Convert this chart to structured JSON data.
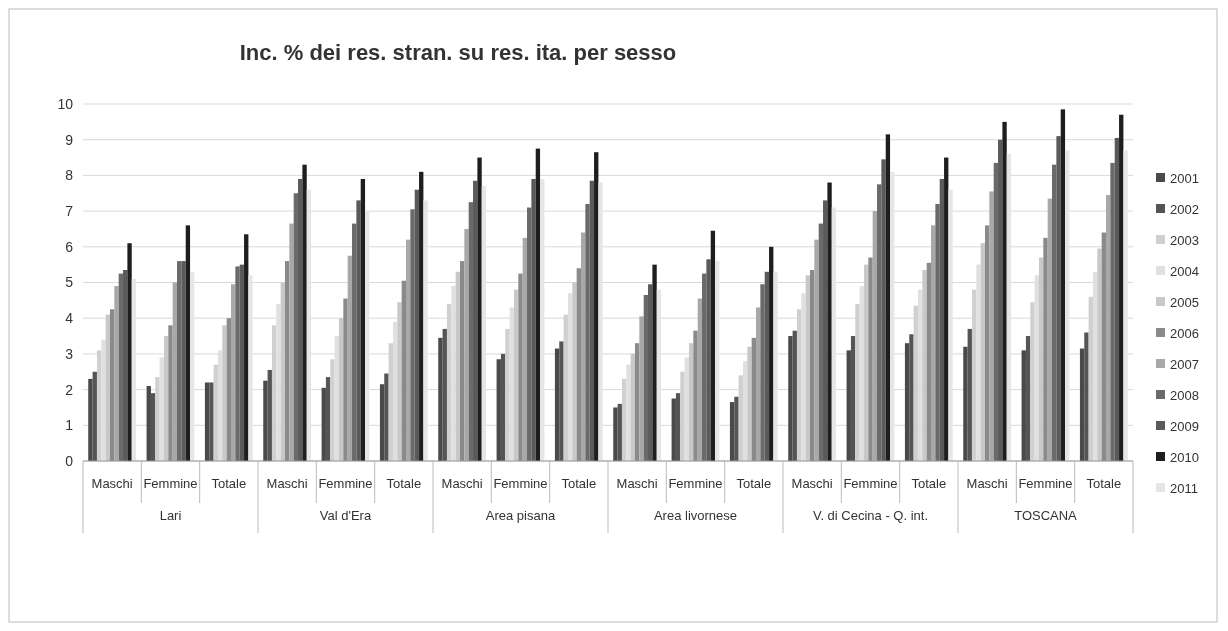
{
  "chart_data": {
    "type": "bar",
    "title": "Inc. % dei res. stran. su res. ita. per sesso",
    "categories": [
      "Maschi",
      "Femmine",
      "Totale",
      "Maschi",
      "Femmine",
      "Totale",
      "Maschi",
      "Femmine",
      "Totale",
      "Maschi",
      "Femmine",
      "Totale",
      "Maschi",
      "Femmine",
      "Totale",
      "Maschi",
      "Femmine",
      "Totale"
    ],
    "annotations": [
      "Lari",
      "Val d'Era",
      "Area pisana",
      "Area livornese",
      "V. di Cecina - Q. int.",
      "TOSCANA"
    ],
    "series": [
      {
        "name": "2001",
        "color": "#4a4a4a",
        "values": [
          2.3,
          2.1,
          2.2,
          2.25,
          2.05,
          2.15,
          3.45,
          2.85,
          3.15,
          1.5,
          1.75,
          1.65,
          3.5,
          3.1,
          3.3,
          3.2,
          3.1,
          3.15
        ]
      },
      {
        "name": "2002",
        "color": "#555555",
        "values": [
          2.5,
          1.9,
          2.2,
          2.55,
          2.35,
          2.45,
          3.7,
          3.0,
          3.35,
          1.6,
          1.9,
          1.8,
          3.65,
          3.5,
          3.55,
          3.7,
          3.5,
          3.6
        ]
      },
      {
        "name": "2003",
        "color": "#d0d0d0",
        "values": [
          3.1,
          2.35,
          2.7,
          3.8,
          2.85,
          3.3,
          4.4,
          3.7,
          4.1,
          2.3,
          2.5,
          2.4,
          4.25,
          4.4,
          4.35,
          4.8,
          4.45,
          4.6
        ]
      },
      {
        "name": "2004",
        "color": "#e0e0e0",
        "values": [
          3.4,
          2.9,
          3.1,
          4.4,
          3.5,
          3.9,
          4.9,
          4.3,
          4.7,
          2.7,
          2.9,
          2.8,
          4.7,
          4.9,
          4.8,
          5.5,
          5.2,
          5.3
        ]
      },
      {
        "name": "2005",
        "color": "#c8c8c8",
        "values": [
          4.1,
          3.5,
          3.8,
          5.0,
          4.0,
          4.45,
          5.3,
          4.8,
          5.0,
          3.0,
          3.3,
          3.2,
          5.2,
          5.5,
          5.35,
          6.1,
          5.7,
          5.95
        ]
      },
      {
        "name": "2006",
        "color": "#8a8a8a",
        "values": [
          4.25,
          3.8,
          4.0,
          5.6,
          4.55,
          5.05,
          5.6,
          5.25,
          5.4,
          3.3,
          3.65,
          3.45,
          5.35,
          5.7,
          5.55,
          6.6,
          6.25,
          6.4
        ]
      },
      {
        "name": "2007",
        "color": "#a8a8a8",
        "values": [
          4.9,
          5.0,
          4.95,
          6.65,
          5.75,
          6.2,
          6.5,
          6.25,
          6.4,
          4.05,
          4.55,
          4.3,
          6.2,
          7.0,
          6.6,
          7.55,
          7.35,
          7.45
        ]
      },
      {
        "name": "2008",
        "color": "#6a6a6a",
        "values": [
          5.25,
          5.6,
          5.45,
          7.5,
          6.65,
          7.05,
          7.25,
          7.1,
          7.2,
          4.65,
          5.25,
          4.95,
          6.65,
          7.75,
          7.2,
          8.35,
          8.3,
          8.35
        ]
      },
      {
        "name": "2009",
        "color": "#5a5a5a",
        "values": [
          5.35,
          5.6,
          5.5,
          7.9,
          7.3,
          7.6,
          7.85,
          7.9,
          7.85,
          4.95,
          5.65,
          5.3,
          7.3,
          8.45,
          7.9,
          9.0,
          9.1,
          9.05
        ]
      },
      {
        "name": "2010",
        "color": "#1e1e1e",
        "values": [
          6.1,
          6.6,
          6.35,
          8.3,
          7.9,
          8.1,
          8.5,
          8.75,
          8.65,
          5.5,
          6.45,
          6.0,
          7.8,
          9.15,
          8.5,
          9.5,
          9.85,
          9.7
        ]
      },
      {
        "name": "2011",
        "color": "#e6e6e6",
        "values": [
          5.1,
          5.3,
          5.2,
          7.6,
          7.0,
          7.3,
          7.7,
          7.9,
          7.8,
          4.8,
          5.6,
          5.3,
          7.1,
          8.1,
          7.6,
          8.6,
          8.7,
          8.7
        ]
      }
    ],
    "ylim": [
      0,
      10
    ],
    "yticks": [
      0,
      1,
      2,
      3,
      4,
      5,
      6,
      7,
      8,
      9,
      10
    ],
    "grid": "y",
    "legend": "right"
  }
}
